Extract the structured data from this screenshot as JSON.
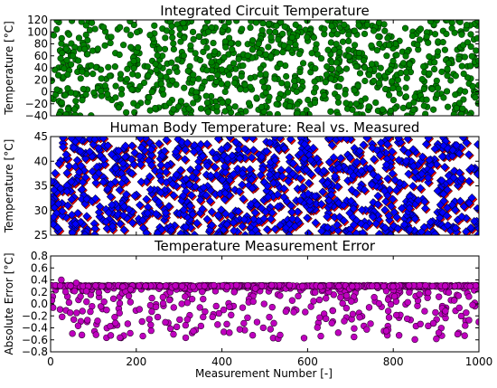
{
  "figure": {
    "xlabel": "Measurement Number [-]"
  },
  "chart_data": [
    {
      "type": "scatter",
      "title": "Integrated Circuit Temperature",
      "xlabel": "",
      "ylabel": "Temperature [°C]",
      "xlim": [
        0,
        1000
      ],
      "ylim": [
        -40,
        120
      ],
      "yticks": [
        "−40",
        "−20",
        "0",
        "20",
        "40",
        "60",
        "80",
        "100",
        "120"
      ],
      "grid": false,
      "point_count": 1000,
      "x_range": [
        0,
        1000
      ],
      "y_range": [
        -40,
        120
      ],
      "series": [
        {
          "marker": "circle",
          "color": "#008000",
          "edge": "#003300",
          "seed": 11
        }
      ]
    },
    {
      "type": "scatter",
      "title": "Human Body Temperature: Real vs. Measured",
      "xlabel": "",
      "ylabel": "Temperature [°C]",
      "xlim": [
        0,
        1000
      ],
      "ylim": [
        25,
        45
      ],
      "yticks": [
        "25",
        "30",
        "35",
        "40",
        "45"
      ],
      "grid": false,
      "point_count": 1000,
      "x_range": [
        0,
        1000
      ],
      "y_range": [
        25,
        45
      ],
      "series": [
        {
          "marker": "diamond",
          "color": "#ff0000",
          "edge": "#550000",
          "seed": 23
        },
        {
          "marker": "diamond",
          "color": "#0000ff",
          "edge": "#000044",
          "seed": 23
        }
      ]
    },
    {
      "type": "scatter",
      "title": "Temperature Measurement Error",
      "xlabel": "Measurement Number [-]",
      "ylabel": "Absolute Error [°C]",
      "xlim": [
        0,
        1000
      ],
      "ylim": [
        -0.8,
        0.8
      ],
      "xticks": [
        "0",
        "200",
        "400",
        "600",
        "800",
        "1000"
      ],
      "yticks": [
        "−0.8",
        "−0.6",
        "−0.4",
        "−0.2",
        "0.0",
        "0.2",
        "0.4",
        "0.6",
        "0.8"
      ],
      "grid": false,
      "point_count": 1000,
      "x_range": [
        0,
        1000
      ],
      "y_range": [
        -0.6,
        0.3
      ],
      "upper_band": 0.3,
      "series": [
        {
          "marker": "circle",
          "color": "#bf00bf",
          "edge": "#330033",
          "seed": 37
        }
      ]
    }
  ]
}
